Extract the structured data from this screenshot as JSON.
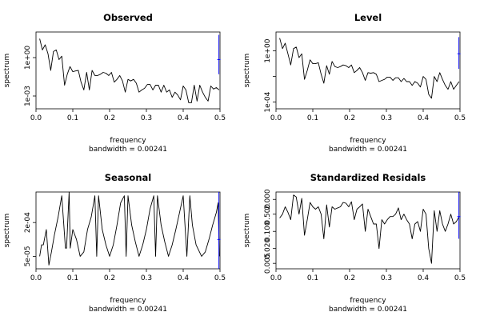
{
  "chart_data": [
    {
      "type": "line",
      "title": "Observed",
      "xlabel": "frequency",
      "ylabel": "spectrum",
      "sub": "bandwidth = 0.00241",
      "log_y": true,
      "xlim": [
        0,
        0.5
      ],
      "ylim": [
        0.0001,
        100
      ],
      "x_ticks": [
        0.0,
        0.1,
        0.2,
        0.3,
        0.4,
        0.5
      ],
      "x_tick_labels": [
        "0.0",
        "0.1",
        "0.2",
        "0.3",
        "0.4",
        "0.5"
      ],
      "y_ticks": [
        0.001,
        1
      ],
      "y_tick_labels": [
        "1e-03",
        "1e+00"
      ],
      "x": [
        0.01,
        0.0175,
        0.025,
        0.0325,
        0.04,
        0.0475,
        0.055,
        0.0625,
        0.07,
        0.0775,
        0.085,
        0.0925,
        0.1,
        0.1075,
        0.115,
        0.1225,
        0.13,
        0.1375,
        0.145,
        0.1525,
        0.16,
        0.1675,
        0.175,
        0.1825,
        0.19,
        0.1975,
        0.205,
        0.2125,
        0.22,
        0.2275,
        0.235,
        0.2425,
        0.25,
        0.2575,
        0.265,
        0.2725,
        0.28,
        0.2875,
        0.295,
        0.3025,
        0.31,
        0.3175,
        0.325,
        0.3325,
        0.34,
        0.3475,
        0.355,
        0.3625,
        0.37,
        0.3775,
        0.385,
        0.3925,
        0.4,
        0.4075,
        0.415,
        0.4225,
        0.43,
        0.4375,
        0.445,
        0.4525,
        0.46,
        0.4675,
        0.475,
        0.4825,
        0.49,
        0.4975
      ],
      "y": [
        30,
        4,
        10,
        2,
        0.1,
        3,
        4,
        0.7,
        1.3,
        0.007,
        0.05,
        0.2,
        0.08,
        0.09,
        0.1,
        0.012,
        0.003,
        0.07,
        0.003,
        0.1,
        0.04,
        0.04,
        0.05,
        0.07,
        0.06,
        0.04,
        0.07,
        0.012,
        0.02,
        0.04,
        0.015,
        0.002,
        0.02,
        0.015,
        0.02,
        0.01,
        0.002,
        0.003,
        0.004,
        0.008,
        0.008,
        0.003,
        0.007,
        0.007,
        0.002,
        0.007,
        0.002,
        0.003,
        0.0008,
        0.002,
        0.0012,
        0.0005,
        0.006,
        0.003,
        0.0003,
        0.0003,
        0.007,
        0.0004,
        0.007,
        0.002,
        0.0008,
        0.0004,
        0.006,
        0.0035,
        0.0045,
        0.003
      ],
      "ci": {
        "x": 0.497,
        "lower": 0.05,
        "center": 0.7,
        "upper": 60,
        "color": "#0000ff"
      }
    },
    {
      "type": "line",
      "title": "Level",
      "xlabel": "frequency",
      "ylabel": "spectrum",
      "sub": "bandwidth = 0.00241",
      "log_y": true,
      "xlim": [
        0,
        0.5
      ],
      "ylim": [
        3e-05,
        30
      ],
      "x_ticks": [
        0.0,
        0.1,
        0.2,
        0.3,
        0.4,
        0.5
      ],
      "x_tick_labels": [
        "0.0",
        "0.1",
        "0.2",
        "0.3",
        "0.4",
        "0.5"
      ],
      "y_ticks": [
        0.0001,
        0.01,
        1
      ],
      "y_tick_labels": [
        "1e-04",
        "",
        "1e+00"
      ],
      "x": [
        0.01,
        0.0175,
        0.025,
        0.0325,
        0.04,
        0.0475,
        0.055,
        0.0625,
        0.07,
        0.0775,
        0.085,
        0.0925,
        0.1,
        0.1075,
        0.115,
        0.1225,
        0.13,
        0.1375,
        0.145,
        0.1525,
        0.16,
        0.1675,
        0.175,
        0.1825,
        0.19,
        0.1975,
        0.205,
        0.2125,
        0.22,
        0.2275,
        0.235,
        0.2425,
        0.25,
        0.2575,
        0.265,
        0.2725,
        0.28,
        0.2875,
        0.295,
        0.3025,
        0.31,
        0.3175,
        0.325,
        0.3325,
        0.34,
        0.3475,
        0.355,
        0.3625,
        0.37,
        0.3775,
        0.385,
        0.3925,
        0.4,
        0.4075,
        0.415,
        0.4225,
        0.43,
        0.4375,
        0.445,
        0.4525,
        0.46,
        0.4675,
        0.475,
        0.4825,
        0.49,
        0.4975
      ],
      "y": [
        10,
        1.5,
        4,
        0.6,
        0.08,
        1.5,
        2,
        0.3,
        0.6,
        0.006,
        0.03,
        0.2,
        0.1,
        0.1,
        0.12,
        0.015,
        0.003,
        0.07,
        0.015,
        0.15,
        0.06,
        0.05,
        0.06,
        0.08,
        0.07,
        0.05,
        0.08,
        0.02,
        0.03,
        0.05,
        0.02,
        0.005,
        0.02,
        0.018,
        0.02,
        0.015,
        0.004,
        0.005,
        0.006,
        0.009,
        0.009,
        0.005,
        0.008,
        0.008,
        0.004,
        0.007,
        0.004,
        0.004,
        0.002,
        0.004,
        0.003,
        0.0015,
        0.01,
        0.006,
        0.0004,
        0.0002,
        0.01,
        0.004,
        0.02,
        0.006,
        0.002,
        0.001,
        0.004,
        0.001,
        0.002,
        0.004
      ],
      "ci": {
        "x": 0.497,
        "lower": 0.04,
        "center": 0.6,
        "upper": 12,
        "color": "#0000ff"
      }
    },
    {
      "type": "line",
      "title": "Seasonal",
      "xlabel": "frequency",
      "ylabel": "spectrum",
      "sub": "bandwidth = 0.00241",
      "log_y": true,
      "xlim": [
        0,
        0.5
      ],
      "ylim": [
        3e-05,
        0.0007
      ],
      "x_ticks": [
        0.0,
        0.1,
        0.2,
        0.3,
        0.4,
        0.5
      ],
      "x_tick_labels": [
        "0.0",
        "0.1",
        "0.2",
        "0.3",
        "0.4",
        "0.5"
      ],
      "y_ticks": [
        5e-05,
        0.0002
      ],
      "y_tick_labels": [
        "5e-05",
        "2e-04"
      ],
      "x": [
        0.01,
        0.015,
        0.02,
        0.028,
        0.035,
        0.042,
        0.05,
        0.06,
        0.07,
        0.08,
        0.083,
        0.09,
        0.093,
        0.1,
        0.11,
        0.12,
        0.13,
        0.14,
        0.15,
        0.16,
        0.165,
        0.17,
        0.18,
        0.19,
        0.2,
        0.21,
        0.22,
        0.23,
        0.24,
        0.245,
        0.25,
        0.26,
        0.27,
        0.28,
        0.29,
        0.3,
        0.31,
        0.32,
        0.325,
        0.33,
        0.34,
        0.35,
        0.36,
        0.37,
        0.38,
        0.39,
        0.4,
        0.41,
        0.418,
        0.425,
        0.435,
        0.45,
        0.46,
        0.47,
        0.48,
        0.49,
        0.495,
        0.498
      ],
      "y": [
        5e-05,
        8e-05,
        8e-05,
        0.00015,
        3.5e-05,
        6e-05,
        0.00012,
        0.00025,
        0.0006,
        7e-05,
        7e-05,
        0.0007,
        7e-05,
        0.00015,
        0.0001,
        5e-05,
        6e-05,
        0.00015,
        0.00025,
        0.0006,
        5e-05,
        0.0006,
        0.00015,
        8e-05,
        5e-05,
        8e-05,
        0.00018,
        0.00045,
        0.0006,
        5e-05,
        0.0006,
        0.00018,
        9e-05,
        5e-05,
        8e-05,
        0.00015,
        0.00035,
        0.0006,
        5e-05,
        0.0006,
        0.00018,
        9e-05,
        5e-05,
        8e-05,
        0.00015,
        0.0003,
        0.0006,
        5e-05,
        0.0006,
        0.00018,
        8e-05,
        5e-05,
        6e-05,
        0.0001,
        0.00018,
        0.0003,
        0.00045,
        5e-05
      ],
      "ci": {
        "x": 0.497,
        "lower": 3e-05,
        "center": 0.0001,
        "upper": 0.0007,
        "color": "#0000ff"
      }
    },
    {
      "type": "line",
      "title": "Standardized Residals",
      "xlabel": "frequency",
      "ylabel": "spectrum",
      "sub": "bandwidth = 0.00241",
      "log_y": true,
      "xlim": [
        0,
        0.5
      ],
      "ylim": [
        0.003,
        4
      ],
      "x_ticks": [
        0.0,
        0.1,
        0.2,
        0.3,
        0.4,
        0.5
      ],
      "x_tick_labels": [
        "0.0",
        "0.1",
        "0.2",
        "0.3",
        "0.4",
        "0.5"
      ],
      "y_ticks": [
        0.005,
        0.02,
        0.1,
        0.5,
        2.0
      ],
      "y_tick_labels": [
        "0.005",
        "0.020",
        "0.100",
        "0.500",
        "2.000"
      ],
      "x": [
        0.01,
        0.0175,
        0.025,
        0.0325,
        0.04,
        0.0475,
        0.055,
        0.0625,
        0.07,
        0.0775,
        0.085,
        0.0925,
        0.1,
        0.1075,
        0.115,
        0.1225,
        0.13,
        0.1375,
        0.145,
        0.1525,
        0.16,
        0.1675,
        0.175,
        0.1825,
        0.19,
        0.1975,
        0.205,
        0.2125,
        0.22,
        0.2275,
        0.235,
        0.2425,
        0.25,
        0.2575,
        0.265,
        0.2725,
        0.28,
        0.2875,
        0.295,
        0.3025,
        0.31,
        0.3175,
        0.325,
        0.3325,
        0.34,
        0.3475,
        0.355,
        0.3625,
        0.37,
        0.3775,
        0.385,
        0.3925,
        0.4,
        0.4075,
        0.415,
        0.4225,
        0.43,
        0.4375,
        0.445,
        0.4525,
        0.46,
        0.4675,
        0.475,
        0.4825,
        0.49,
        0.4975
      ],
      "y": [
        0.35,
        0.5,
        1,
        0.6,
        0.3,
        3,
        2.5,
        0.5,
        2.2,
        0.07,
        0.3,
        1.5,
        1,
        0.8,
        1,
        0.5,
        0.05,
        1.2,
        0.15,
        1,
        0.8,
        0.9,
        1,
        1.5,
        1.4,
        1,
        1.6,
        0.3,
        0.8,
        1,
        1.3,
        0.1,
        0.8,
        0.4,
        0.2,
        0.2,
        0.02,
        0.3,
        0.2,
        0.3,
        0.4,
        0.4,
        0.5,
        0.9,
        0.3,
        0.5,
        0.3,
        0.2,
        0.05,
        0.2,
        0.25,
        0.1,
        0.8,
        0.5,
        0.02,
        0.005,
        0.7,
        0.1,
        0.7,
        0.2,
        0.1,
        0.2,
        0.5,
        0.2,
        0.25,
        0.4
      ],
      "ci": {
        "x": 0.497,
        "lower": 0.05,
        "center": 0.4,
        "upper": 4,
        "color": "#0000ff"
      }
    }
  ]
}
